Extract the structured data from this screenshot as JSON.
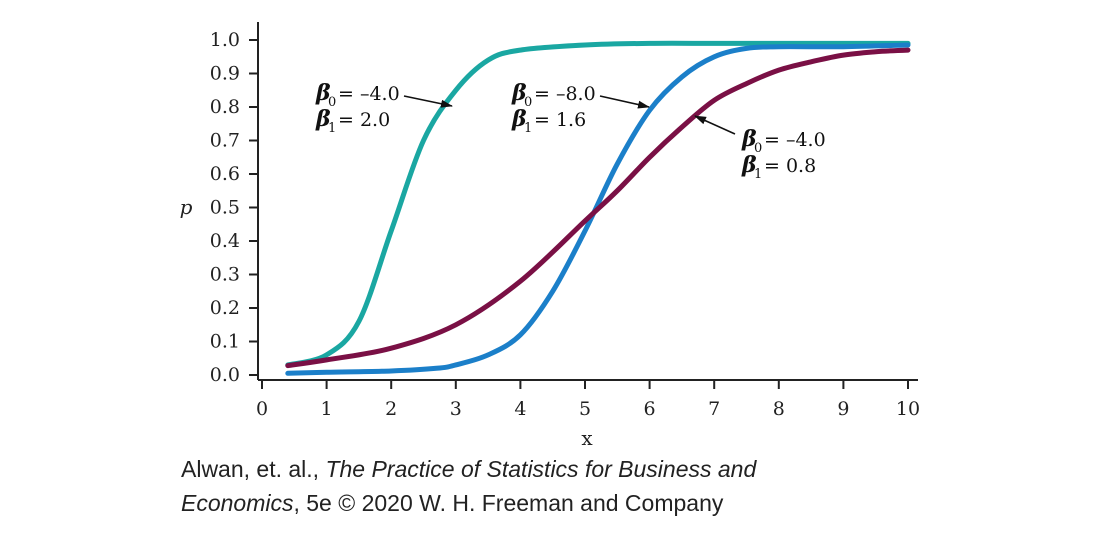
{
  "chart_data": {
    "type": "line",
    "xlabel": "x",
    "ylabel": "p",
    "xlim": [
      0,
      10
    ],
    "ylim": [
      0,
      1.0
    ],
    "x_ticks": [
      0,
      1,
      2,
      3,
      4,
      5,
      6,
      7,
      8,
      9,
      10
    ],
    "x_tick_labels": [
      "0",
      "1",
      "2",
      "3",
      "4",
      "5",
      "6",
      "7",
      "8",
      "9",
      "10"
    ],
    "y_ticks": [
      0.0,
      0.1,
      0.2,
      0.3,
      0.4,
      0.5,
      0.6,
      0.7,
      0.8,
      0.9,
      1.0
    ],
    "y_tick_labels": [
      "0.0",
      "0.1",
      "0.2",
      "0.3",
      "0.4",
      "0.5",
      "0.6",
      "0.7",
      "0.8",
      "0.9",
      "1.0"
    ],
    "grid": false,
    "series": [
      {
        "color": "#1aa7a2",
        "b0": -4.0,
        "b1": 2.0,
        "points": [
          [
            0.4,
            0.03
          ],
          [
            1.0,
            0.06
          ],
          [
            1.5,
            0.16
          ],
          [
            2.0,
            0.43
          ],
          [
            2.5,
            0.7
          ],
          [
            3.0,
            0.85
          ],
          [
            3.5,
            0.94
          ],
          [
            4.0,
            0.97
          ],
          [
            5.0,
            0.985
          ],
          [
            6.0,
            0.99
          ],
          [
            7.0,
            0.99
          ],
          [
            8.0,
            0.99
          ],
          [
            9.0,
            0.99
          ],
          [
            10.0,
            0.99
          ]
        ],
        "annotation": {
          "b0_text": "= –4.0",
          "b1_text": "= 2.0"
        }
      },
      {
        "color": "#1b7fc9",
        "b0": -8.0,
        "b1": 1.6,
        "points": [
          [
            0.4,
            0.005
          ],
          [
            1.0,
            0.008
          ],
          [
            2.0,
            0.012
          ],
          [
            2.7,
            0.02
          ],
          [
            3.0,
            0.03
          ],
          [
            3.5,
            0.06
          ],
          [
            4.0,
            0.12
          ],
          [
            4.5,
            0.25
          ],
          [
            5.0,
            0.43
          ],
          [
            5.5,
            0.63
          ],
          [
            6.0,
            0.79
          ],
          [
            6.5,
            0.89
          ],
          [
            7.0,
            0.95
          ],
          [
            7.5,
            0.975
          ],
          [
            8.0,
            0.98
          ],
          [
            9.0,
            0.98
          ],
          [
            10.0,
            0.985
          ]
        ],
        "annotation": {
          "b0_text": "= –8.0",
          "b1_text": "= 1.6"
        }
      },
      {
        "color": "#7a1045",
        "b0": -4.0,
        "b1": 0.8,
        "points": [
          [
            0.4,
            0.028
          ],
          [
            1.0,
            0.045
          ],
          [
            2.0,
            0.08
          ],
          [
            3.0,
            0.15
          ],
          [
            4.0,
            0.28
          ],
          [
            5.0,
            0.46
          ],
          [
            5.5,
            0.55
          ],
          [
            6.0,
            0.65
          ],
          [
            6.5,
            0.74
          ],
          [
            7.0,
            0.82
          ],
          [
            7.5,
            0.87
          ],
          [
            8.0,
            0.91
          ],
          [
            8.5,
            0.935
          ],
          [
            9.0,
            0.955
          ],
          [
            9.5,
            0.965
          ],
          [
            10.0,
            0.97
          ]
        ],
        "annotation": {
          "b0_text": "= –4.0",
          "b1_text": "= 0.8"
        }
      }
    ]
  },
  "labels": {
    "beta": "β",
    "sub0": "0",
    "sub1": "1"
  },
  "credit": {
    "line1_plain": "Alwan, et. al., ",
    "line1_italic": "The Practice of Statistics for Business and",
    "line2_italic": "Economics",
    "line2_plain": ", 5e © 2020 W. H. Freeman and Company"
  }
}
